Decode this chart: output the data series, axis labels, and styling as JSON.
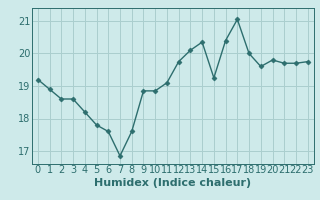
{
  "x": [
    0,
    1,
    2,
    3,
    4,
    5,
    6,
    7,
    8,
    9,
    10,
    11,
    12,
    13,
    14,
    15,
    16,
    17,
    18,
    19,
    20,
    21,
    22,
    23
  ],
  "y": [
    19.2,
    18.9,
    18.6,
    18.6,
    18.2,
    17.8,
    17.6,
    16.85,
    17.6,
    18.85,
    18.85,
    19.1,
    19.75,
    20.1,
    20.35,
    19.25,
    20.4,
    21.05,
    20.0,
    19.6,
    19.8,
    19.7,
    19.7,
    19.75
  ],
  "line_color": "#2d6e6e",
  "marker": "D",
  "marker_size": 2.5,
  "bg_color": "#ceeaea",
  "grid_color": "#aacece",
  "xlabel": "Humidex (Indice chaleur)",
  "ylim": [
    16.6,
    21.4
  ],
  "xlim": [
    -0.5,
    23.5
  ],
  "yticks": [
    17,
    18,
    19,
    20,
    21
  ],
  "xticks": [
    0,
    1,
    2,
    3,
    4,
    5,
    6,
    7,
    8,
    9,
    10,
    11,
    12,
    13,
    14,
    15,
    16,
    17,
    18,
    19,
    20,
    21,
    22,
    23
  ],
  "tick_color": "#2d6e6e",
  "xlabel_fontsize": 8,
  "tick_fontsize": 7,
  "line_width": 1.0
}
